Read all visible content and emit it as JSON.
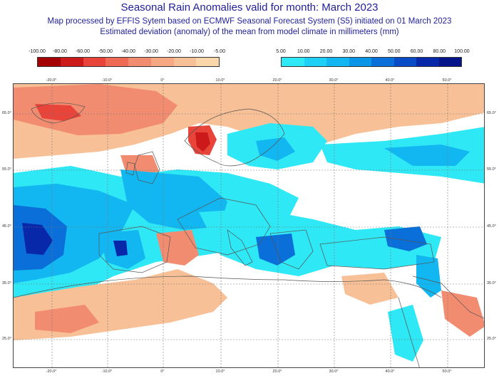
{
  "header": {
    "title": "Seasonal Rain Anomalies valid for month: March 2023",
    "subtitle_line1": "Map processed by EFFIS Sytem based on ECMWF Seasonal Forecast System (S5) initiated on 01 March 2023",
    "subtitle_line2": "Estimated deviation (anomaly) of the mean from model climate in millimeters (mm)"
  },
  "legend_negative": {
    "labels": [
      "-100.00",
      "-80.00",
      "-60.00",
      "-50.00",
      "-40.00",
      "-30.00",
      "-20.00",
      "-10.00",
      "-5.00"
    ],
    "colors": [
      "#a50000",
      "#cc1a1a",
      "#e8443a",
      "#ee6a55",
      "#f28c70",
      "#f5a882",
      "#f8c096",
      "#fbd6a8"
    ]
  },
  "legend_positive": {
    "labels": [
      "5.00",
      "10.00",
      "20.00",
      "30.00",
      "40.00",
      "50.00",
      "60.00",
      "80.00",
      "100.00"
    ],
    "colors": [
      "#2ee8f5",
      "#1ed0f5",
      "#12b6f0",
      "#0a96e6",
      "#0a6fd8",
      "#0a4cc8",
      "#0828aa",
      "#06148a"
    ]
  },
  "axis": {
    "lon_top": [
      "-20.0°",
      "-10.0°",
      "0°",
      "10.0°",
      "20.0°",
      "30.0°",
      "40.0°",
      "50.0°"
    ],
    "lon_bottom": [
      "-20.0°",
      "-10.0°",
      "0°",
      "10.0°",
      "20.0°",
      "30.0°",
      "40.0°",
      "50.0°"
    ],
    "lat_left": [
      "65.0°",
      "55.0°",
      "45.0°",
      "35.0°",
      "25.0°"
    ],
    "lat_right": [
      "65.0°",
      "55.0°",
      "45.0°",
      "35.0°",
      "25.0°"
    ]
  },
  "map": {
    "anomaly_colors": {
      "very_dry": "#d94a3a",
      "dry": "#f28c70",
      "slightly_dry": "#f8c096",
      "neutral": "#ffffff",
      "slightly_wet": "#2ee8f5",
      "wet": "#12b6f0",
      "very_wet": "#0a6fd8",
      "extremely_wet": "#0828aa"
    }
  }
}
